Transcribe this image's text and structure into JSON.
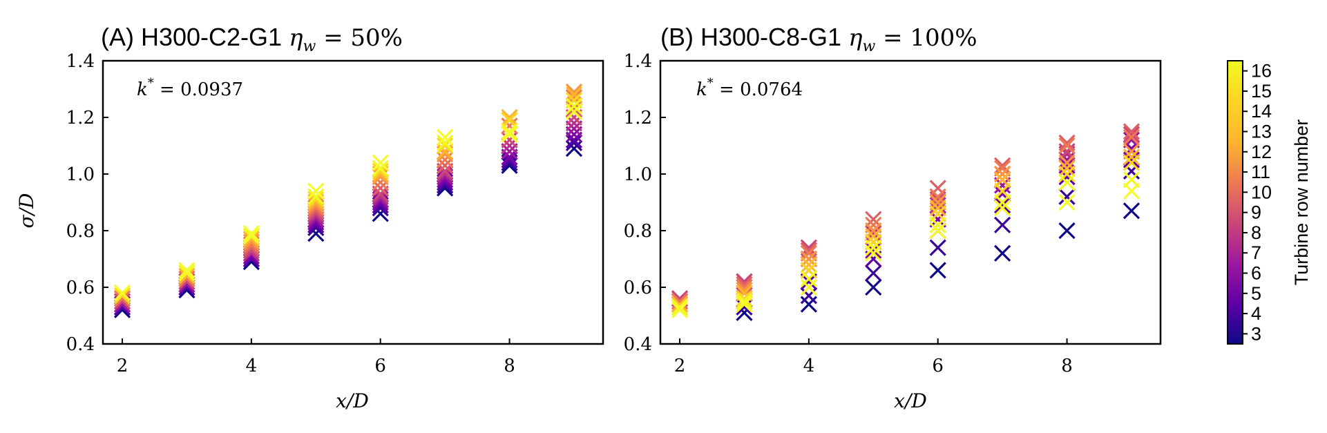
{
  "chart_data": [
    {
      "type": "scatter",
      "title": "(A) H300-C2-G1 ",
      "title_math": "η_w = 50%",
      "annotation": "k* = 0.0937",
      "xlabel": "x/D",
      "ylabel": "σ/D",
      "xlim": [
        1.7,
        9.45
      ],
      "ylim": [
        0.4,
        1.4
      ],
      "xticks": [
        2,
        4,
        6,
        8
      ],
      "yticks": [
        0.4,
        0.6,
        0.8,
        1.0,
        1.2,
        1.4
      ],
      "marker": "x",
      "color_by": "turbine_row",
      "series": [
        {
          "row": 3,
          "x": [
            2,
            3,
            4,
            5,
            6,
            7,
            8,
            9
          ],
          "y": [
            0.52,
            0.59,
            0.69,
            0.79,
            0.86,
            0.95,
            1.03,
            1.09
          ]
        },
        {
          "row": 4,
          "x": [
            2,
            3,
            4,
            5,
            6,
            7,
            8,
            9
          ],
          "y": [
            0.53,
            0.6,
            0.7,
            0.81,
            0.88,
            0.96,
            1.04,
            1.11
          ]
        },
        {
          "row": 5,
          "x": [
            2,
            3,
            4,
            5,
            6,
            7,
            8,
            9
          ],
          "y": [
            0.53,
            0.6,
            0.7,
            0.82,
            0.89,
            0.97,
            1.05,
            1.12
          ]
        },
        {
          "row": 6,
          "x": [
            2,
            3,
            4,
            5,
            6,
            7,
            8,
            9
          ],
          "y": [
            0.54,
            0.61,
            0.71,
            0.83,
            0.9,
            0.98,
            1.06,
            1.14
          ]
        },
        {
          "row": 7,
          "x": [
            2,
            3,
            4,
            5,
            6,
            7,
            8,
            9
          ],
          "y": [
            0.54,
            0.61,
            0.72,
            0.84,
            0.91,
            0.99,
            1.08,
            1.16
          ]
        },
        {
          "row": 8,
          "x": [
            2,
            3,
            4,
            5,
            6,
            7,
            8,
            9
          ],
          "y": [
            0.55,
            0.62,
            0.72,
            0.85,
            0.92,
            1.0,
            1.1,
            1.18
          ]
        },
        {
          "row": 9,
          "x": [
            2,
            3,
            4,
            5,
            6,
            7,
            8,
            9
          ],
          "y": [
            0.55,
            0.62,
            0.73,
            0.86,
            0.93,
            1.01,
            1.12,
            1.2
          ]
        },
        {
          "row": 10,
          "x": [
            2,
            3,
            4,
            5,
            6,
            7,
            8,
            9
          ],
          "y": [
            0.56,
            0.63,
            0.74,
            0.87,
            0.95,
            1.03,
            1.14,
            1.23
          ]
        },
        {
          "row": 11,
          "x": [
            2,
            3,
            4,
            5,
            6,
            7,
            8,
            9
          ],
          "y": [
            0.56,
            0.63,
            0.75,
            0.88,
            0.97,
            1.05,
            1.17,
            1.27
          ]
        },
        {
          "row": 12,
          "x": [
            2,
            3,
            4,
            5,
            6,
            7,
            8,
            9
          ],
          "y": [
            0.57,
            0.64,
            0.76,
            0.89,
            0.99,
            1.07,
            1.19,
            1.29
          ]
        },
        {
          "row": 13,
          "x": [
            2,
            3,
            4,
            5,
            6,
            7,
            8,
            9
          ],
          "y": [
            0.57,
            0.64,
            0.77,
            0.9,
            1.0,
            1.08,
            1.2,
            1.28
          ]
        },
        {
          "row": 14,
          "x": [
            2,
            3,
            4,
            5,
            6,
            7,
            8,
            9
          ],
          "y": [
            0.57,
            0.65,
            0.78,
            0.91,
            1.01,
            1.1,
            1.19,
            1.26
          ]
        },
        {
          "row": 15,
          "x": [
            2,
            3,
            4,
            5,
            6,
            7,
            8,
            9
          ],
          "y": [
            0.58,
            0.65,
            0.78,
            0.92,
            1.02,
            1.11,
            1.15,
            1.24
          ]
        },
        {
          "row": 16,
          "x": [
            2,
            3,
            4,
            5,
            6,
            7,
            8,
            9
          ],
          "y": [
            0.58,
            0.66,
            0.79,
            0.94,
            1.04,
            1.13,
            1.14,
            1.22
          ]
        }
      ]
    },
    {
      "type": "scatter",
      "title": "(B) H300-C8-G1 ",
      "title_math": "η_w = 100%",
      "annotation": "k* = 0.0764",
      "xlabel": "x/D",
      "ylabel": "",
      "xlim": [
        1.7,
        9.45
      ],
      "ylim": [
        0.4,
        1.4
      ],
      "xticks": [
        2,
        4,
        6,
        8
      ],
      "yticks": [
        0.4,
        0.6,
        0.8,
        1.0,
        1.2,
        1.4
      ],
      "marker": "x",
      "color_by": "turbine_row",
      "series": [
        {
          "row": 3,
          "x": [
            2,
            3,
            4,
            5,
            6,
            7,
            8,
            9
          ],
          "y": [
            0.53,
            0.51,
            0.54,
            0.6,
            0.66,
            0.72,
            0.8,
            0.87
          ]
        },
        {
          "row": 4,
          "x": [
            2,
            3,
            4,
            5,
            6,
            7,
            8,
            9
          ],
          "y": [
            0.54,
            0.53,
            0.57,
            0.65,
            0.74,
            0.82,
            0.92,
            1.01
          ]
        },
        {
          "row": 5,
          "x": [
            2,
            3,
            4,
            5,
            6,
            7,
            8,
            9
          ],
          "y": [
            0.54,
            0.55,
            0.62,
            0.7,
            0.8,
            0.89,
            0.99,
            1.05
          ]
        },
        {
          "row": 6,
          "x": [
            2,
            3,
            4,
            5,
            6,
            7,
            8,
            9
          ],
          "y": [
            0.55,
            0.58,
            0.66,
            0.73,
            0.84,
            0.93,
            1.03,
            1.09
          ]
        },
        {
          "row": 7,
          "x": [
            2,
            3,
            4,
            5,
            6,
            7,
            8,
            9
          ],
          "y": [
            0.55,
            0.6,
            0.7,
            0.76,
            0.86,
            0.96,
            1.05,
            1.12
          ]
        },
        {
          "row": 8,
          "x": [
            2,
            3,
            4,
            5,
            6,
            7,
            8,
            9
          ],
          "y": [
            0.56,
            0.62,
            0.73,
            0.79,
            0.89,
            0.98,
            1.07,
            1.14
          ]
        },
        {
          "row": 9,
          "x": [
            2,
            3,
            4,
            5,
            6,
            7,
            8,
            9
          ],
          "y": [
            0.56,
            0.62,
            0.74,
            0.8,
            0.91,
            1.0,
            1.08,
            1.14
          ]
        },
        {
          "row": 10,
          "x": [
            2,
            3,
            4,
            5,
            6,
            7,
            8,
            9
          ],
          "y": [
            0.55,
            0.61,
            0.73,
            0.84,
            0.95,
            1.03,
            1.11,
            1.15
          ]
        },
        {
          "row": 11,
          "x": [
            2,
            3,
            4,
            5,
            6,
            7,
            8,
            9
          ],
          "y": [
            0.55,
            0.6,
            0.72,
            0.82,
            0.92,
            1.02,
            1.1,
            1.13
          ]
        },
        {
          "row": 12,
          "x": [
            2,
            3,
            4,
            5,
            6,
            7,
            8,
            9
          ],
          "y": [
            0.54,
            0.59,
            0.7,
            0.8,
            0.9,
            1.0,
            1.04,
            1.08
          ]
        },
        {
          "row": 13,
          "x": [
            2,
            3,
            4,
            5,
            6,
            7,
            8,
            9
          ],
          "y": [
            0.54,
            0.58,
            0.68,
            0.78,
            0.88,
            0.98,
            1.02,
            1.06
          ]
        },
        {
          "row": 14,
          "x": [
            2,
            3,
            4,
            5,
            6,
            7,
            8,
            9
          ],
          "y": [
            0.53,
            0.56,
            0.66,
            0.76,
            0.86,
            0.94,
            1.0,
            1.04
          ]
        },
        {
          "row": 15,
          "x": [
            2,
            3,
            4,
            5,
            6,
            7,
            8,
            9
          ],
          "y": [
            0.53,
            0.55,
            0.63,
            0.74,
            0.82,
            0.9,
            0.97,
            0.98
          ]
        },
        {
          "row": 16,
          "x": [
            2,
            3,
            4,
            5,
            6,
            7,
            8,
            9
          ],
          "y": [
            0.52,
            0.54,
            0.6,
            0.72,
            0.8,
            0.88,
            0.9,
            0.94
          ]
        }
      ]
    }
  ],
  "colorbar": {
    "label": "Turbine row number",
    "ticks": [
      3,
      4,
      5,
      6,
      7,
      8,
      9,
      10,
      11,
      12,
      13,
      14,
      15,
      16
    ],
    "colormap": "plasma",
    "colors": [
      "#0d0887",
      "#3a049a",
      "#5c01a6",
      "#7e03a8",
      "#9c179e",
      "#b52f8c",
      "#cc4778",
      "#de5f65",
      "#ed7953",
      "#f89540",
      "#fdb42f",
      "#fbd524",
      "#f0f921",
      "#f7fb2c"
    ]
  }
}
